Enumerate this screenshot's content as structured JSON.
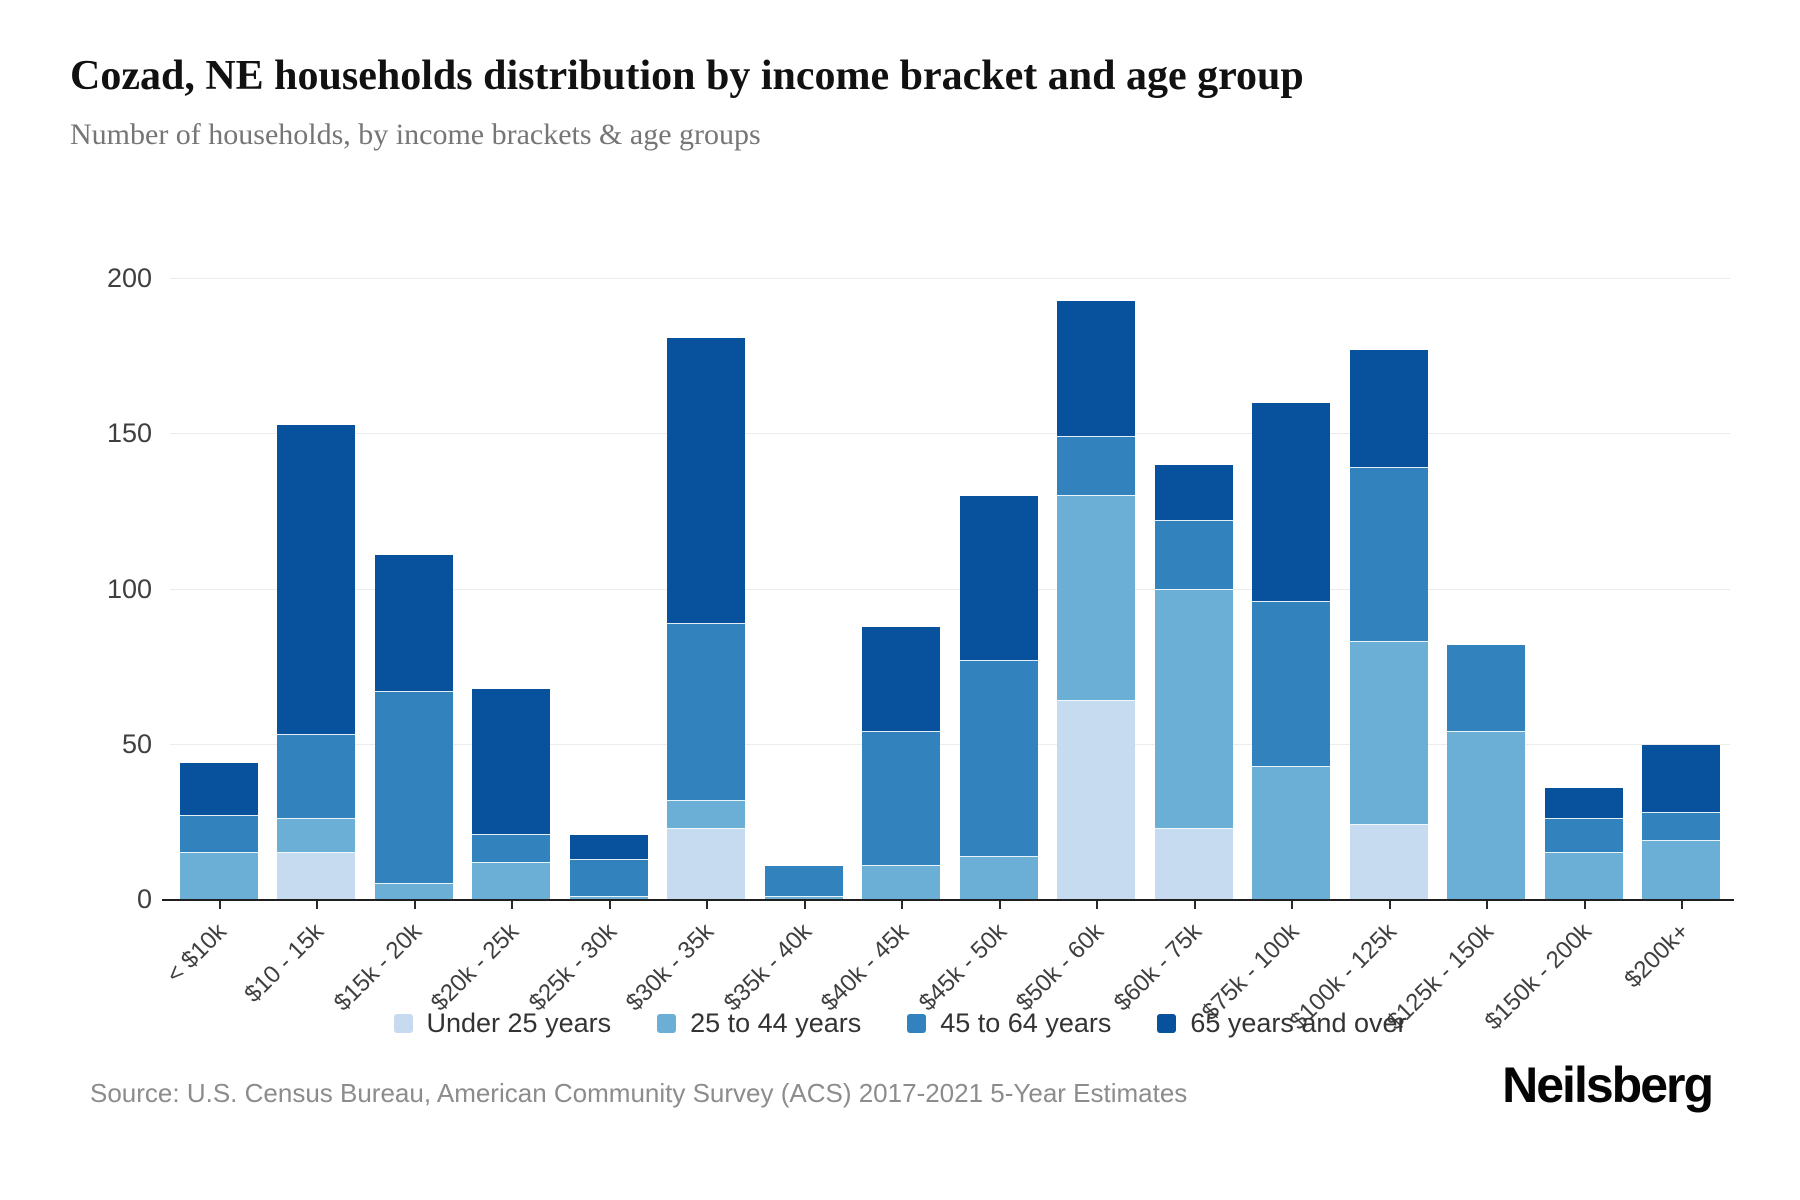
{
  "header": {
    "title": "Cozad, NE households distribution by income bracket and age group",
    "subtitle": "Number of households, by income brackets & age groups"
  },
  "chart_data": {
    "type": "bar",
    "stacked": true,
    "title": "Cozad, NE households distribution by income bracket and age group",
    "xlabel": "",
    "ylabel": "Number of households",
    "ylim": [
      0,
      200
    ],
    "yticks": [
      0,
      50,
      100,
      150,
      200
    ],
    "grid": "horizontal",
    "legend_position": "bottom",
    "categories": [
      "< $10k",
      "$10 - 15k",
      "$15k - 20k",
      "$20k - 25k",
      "$25k - 30k",
      "$30k - 35k",
      "$35k - 40k",
      "$40k - 45k",
      "$45k - 50k",
      "$50k - 60k",
      "$60k - 75k",
      "$75k - 100k",
      "$100k - 125k",
      "$125k - 150k",
      "$150k - 200k",
      "$200k+"
    ],
    "series": [
      {
        "name": "Under 25 years",
        "color": "#c6dbef",
        "values": [
          0,
          15,
          0,
          0,
          0,
          23,
          0,
          0,
          0,
          64,
          23,
          0,
          24,
          0,
          0,
          0
        ]
      },
      {
        "name": "25 to 44 years",
        "color": "#6baed6",
        "values": [
          15,
          11,
          5,
          12,
          1,
          9,
          1,
          11,
          14,
          66,
          77,
          43,
          59,
          54,
          15,
          19
        ]
      },
      {
        "name": "45 to 64 years",
        "color": "#3182bd",
        "values": [
          12,
          27,
          62,
          9,
          12,
          57,
          10,
          43,
          63,
          19,
          22,
          53,
          56,
          28,
          11,
          9
        ]
      },
      {
        "name": "65 years and over",
        "color": "#08519c",
        "values": [
          17,
          100,
          44,
          47,
          8,
          92,
          0,
          34,
          53,
          44,
          18,
          64,
          38,
          0,
          10,
          22
        ]
      }
    ],
    "totals": [
      44,
      153,
      111,
      68,
      21,
      181,
      11,
      88,
      130,
      193,
      140,
      160,
      177,
      82,
      36,
      50
    ]
  },
  "footer": {
    "source": "Source: U.S. Census Bureau, American Community Survey (ACS) 2017-2021 5-Year Estimates",
    "brand": "Neilsberg"
  }
}
